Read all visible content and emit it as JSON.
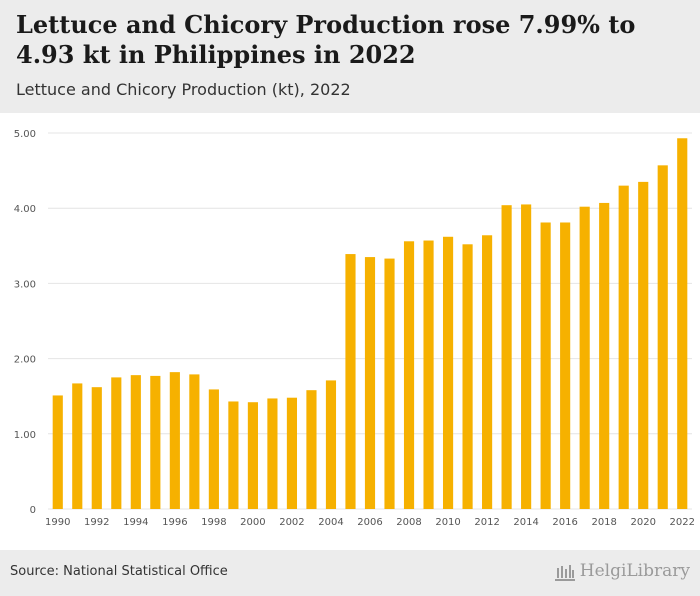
{
  "header": {
    "title": "Lettuce and Chicory Production rose 7.99% to 4.93 kt in Philippines in 2022",
    "subtitle": "Lettuce and Chicory Production (kt), 2022"
  },
  "footer": {
    "source": "Source: National Statistical Office",
    "brand": "HelgiLibrary"
  },
  "colors": {
    "bar": "#f6b100",
    "grid": "#e4e4e4",
    "axis_text": "#555555"
  },
  "chart_data": {
    "type": "bar",
    "title": "Lettuce and Chicory Production (kt), 2022",
    "xlabel": "",
    "ylabel": "",
    "ylim": [
      0,
      5
    ],
    "yticks": [
      0,
      1,
      2,
      3,
      4,
      5
    ],
    "ytick_labels": [
      "0",
      "1.00",
      "2.00",
      "3.00",
      "4.00",
      "5.00"
    ],
    "xtick_labels": [
      "1990",
      "1992",
      "1994",
      "1996",
      "1998",
      "2000",
      "2002",
      "2004",
      "2006",
      "2008",
      "2010",
      "2012",
      "2014",
      "2016",
      "2018",
      "2020",
      "2022"
    ],
    "grid": true,
    "categories": [
      "1990",
      "1991",
      "1992",
      "1993",
      "1994",
      "1995",
      "1996",
      "1997",
      "1998",
      "1999",
      "2000",
      "2001",
      "2002",
      "2003",
      "2004",
      "2005",
      "2006",
      "2007",
      "2008",
      "2009",
      "2010",
      "2011",
      "2012",
      "2013",
      "2014",
      "2015",
      "2016",
      "2017",
      "2018",
      "2019",
      "2020",
      "2021",
      "2022"
    ],
    "values": [
      1.51,
      1.67,
      1.62,
      1.75,
      1.78,
      1.77,
      1.82,
      1.79,
      1.59,
      1.43,
      1.42,
      1.47,
      1.48,
      1.58,
      1.71,
      3.39,
      3.35,
      3.33,
      3.56,
      3.57,
      3.62,
      3.52,
      3.64,
      4.04,
      4.05,
      3.81,
      3.81,
      4.02,
      4.07,
      4.3,
      4.35,
      4.57,
      4.93
    ]
  }
}
